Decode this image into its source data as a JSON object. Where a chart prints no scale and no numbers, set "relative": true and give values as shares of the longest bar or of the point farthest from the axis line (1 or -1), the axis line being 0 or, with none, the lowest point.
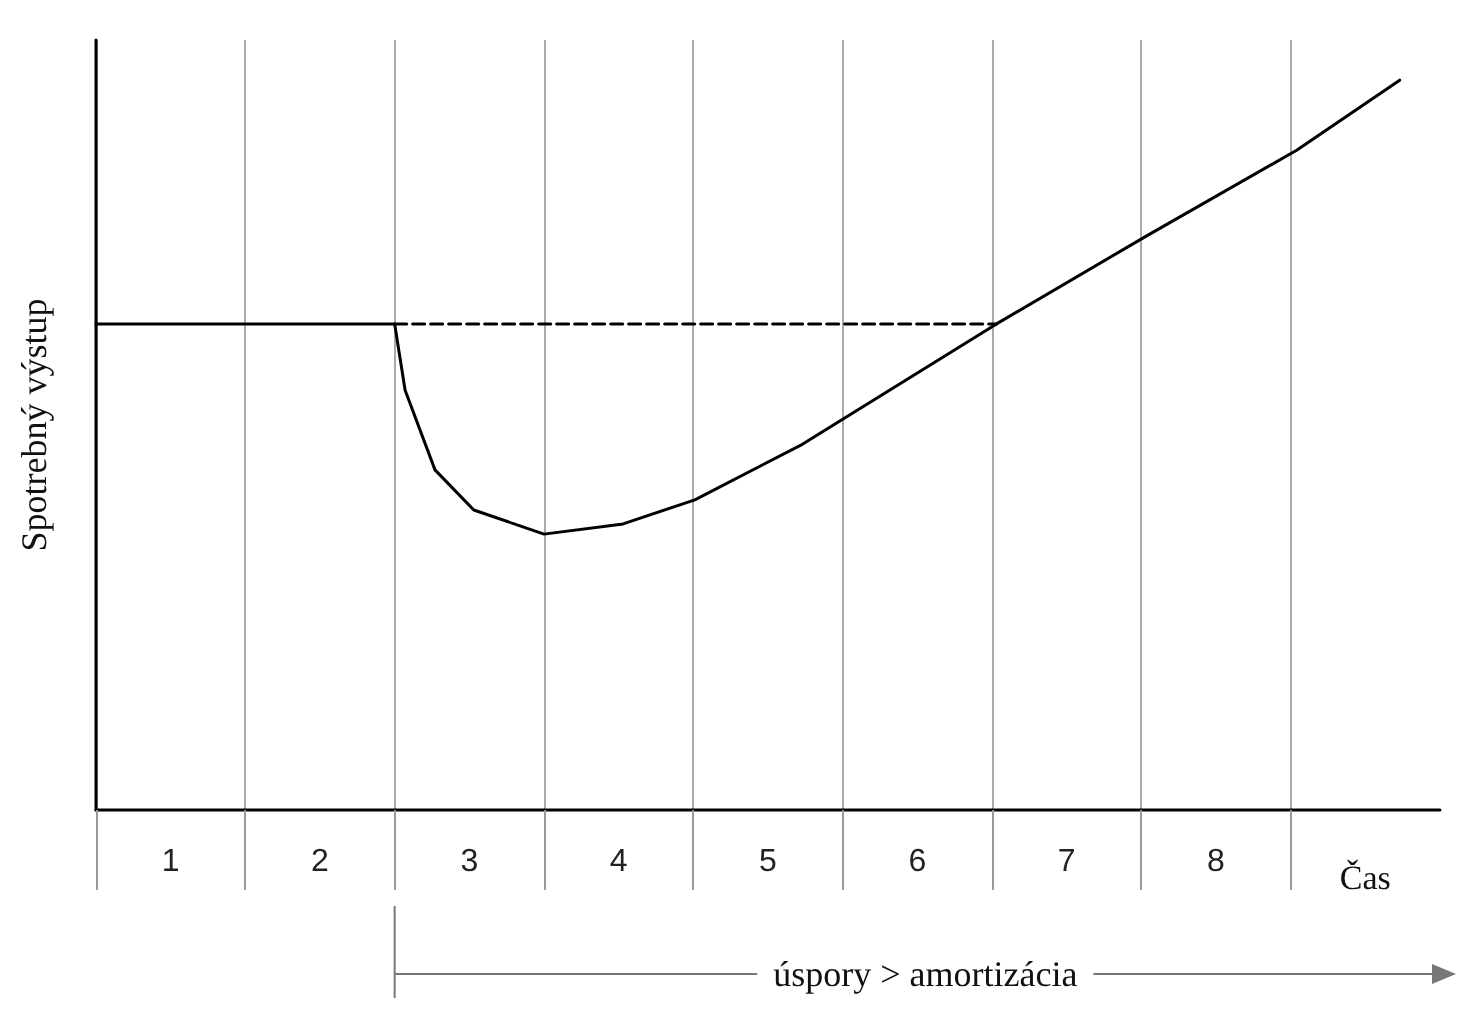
{
  "chart_data": {
    "type": "line",
    "relative": true,
    "ylabel": "Spotrebný výstup",
    "xlabel": "Čas",
    "xlim": [
      0,
      9
    ],
    "xticks": [
      {
        "value": 0,
        "label": null
      },
      {
        "value": 0.5,
        "label": "1"
      },
      {
        "value": 1,
        "label": null
      },
      {
        "value": 1.5,
        "label": "2"
      },
      {
        "value": 2,
        "label": null
      },
      {
        "value": 2.5,
        "label": "3"
      },
      {
        "value": 3,
        "label": null
      },
      {
        "value": 3.5,
        "label": "4"
      },
      {
        "value": 4,
        "label": null
      },
      {
        "value": 4.5,
        "label": "5"
      },
      {
        "value": 5,
        "label": null
      },
      {
        "value": 5.5,
        "label": "6"
      },
      {
        "value": 6,
        "label": null
      },
      {
        "value": 6.5,
        "label": "7"
      },
      {
        "value": 7,
        "label": null
      },
      {
        "value": 7.5,
        "label": "8"
      },
      {
        "value": 8,
        "label": null
      }
    ],
    "grid": "x",
    "marker": "none",
    "series": [
      {
        "color": "#000000",
        "line_style": "solid",
        "x": [
          0,
          2,
          2.03,
          2.07,
          2.27,
          2.53,
          3,
          3.53,
          4.01,
          4.73,
          6.03,
          7.03,
          8.04,
          8.73
        ],
        "values": [
          0.666,
          0.666,
          0.627,
          0.575,
          0.466,
          0.411,
          0.378,
          0.392,
          0.425,
          0.501,
          0.666,
          0.786,
          0.904,
          1
        ]
      },
      {
        "color": "#000000",
        "line_style": "dashed",
        "x": [
          2,
          6.03
        ],
        "values": [
          0.666,
          0.666
        ]
      }
    ],
    "annotations": [
      "úspory > amortizácia"
    ]
  }
}
